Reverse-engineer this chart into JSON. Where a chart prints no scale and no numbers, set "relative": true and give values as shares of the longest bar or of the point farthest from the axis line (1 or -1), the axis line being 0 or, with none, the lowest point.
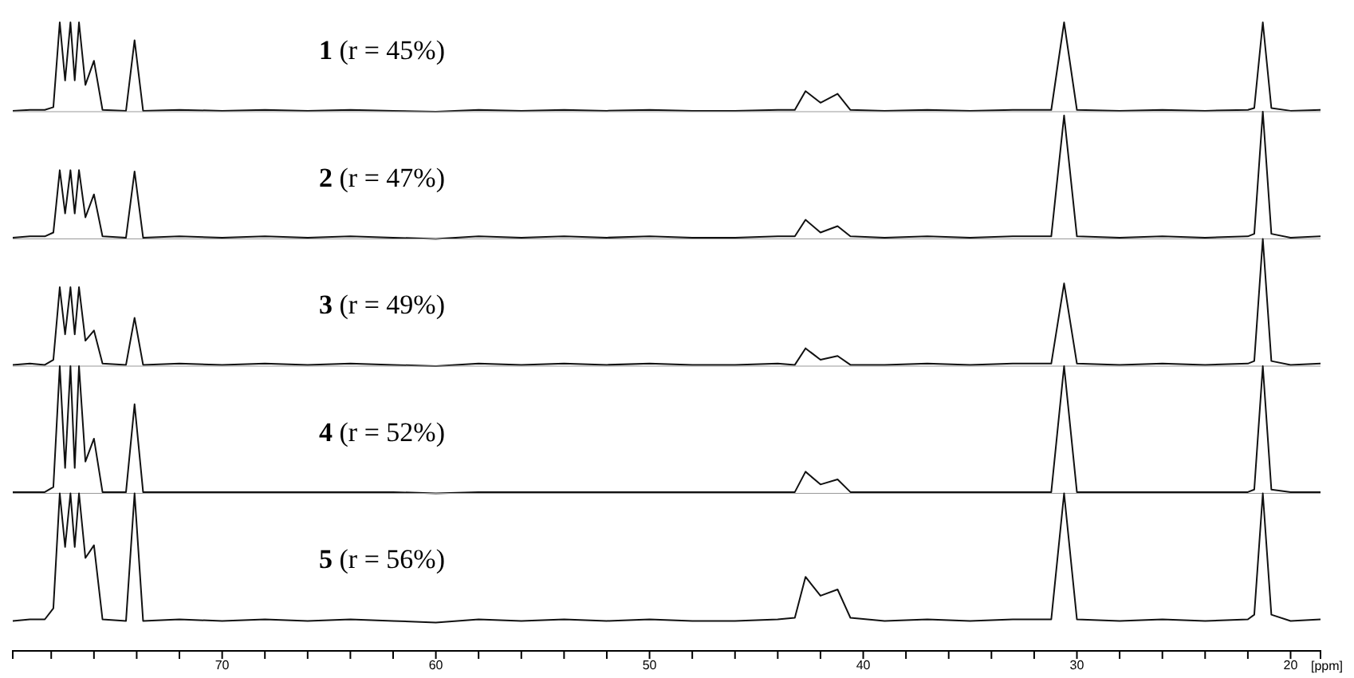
{
  "chart_data": [
    {
      "type": "line",
      "title": "1 (r = 45%)",
      "relative": true,
      "xlim": [
        79.8,
        18.6
      ],
      "tick_labels": false,
      "x": [
        79.8,
        79,
        78.3,
        77.9,
        77.6,
        77.35,
        77.1,
        76.9,
        76.7,
        76.4,
        76.0,
        75.6,
        74.5,
        74.1,
        73.7,
        72,
        70,
        68,
        66,
        64,
        62,
        60,
        58,
        56,
        54,
        52,
        50,
        48,
        46,
        44,
        43.2,
        42.7,
        42.0,
        41.2,
        40.6,
        39,
        37,
        35,
        33,
        31.2,
        30.6,
        30.0,
        28,
        26,
        24,
        22,
        21.7,
        21.3,
        20.9,
        20,
        18.6
      ],
      "series": [
        {
          "color": "#111111",
          "values": [
            0.01,
            0.02,
            0.02,
            0.05,
            1,
            0.35,
            1,
            0.35,
            1,
            0.3,
            0.57,
            0.02,
            0.01,
            0.8,
            0.01,
            0.02,
            0.01,
            0.02,
            0.01,
            0.02,
            0.01,
            0,
            0.02,
            0.01,
            0.02,
            0.01,
            0.02,
            0.01,
            0.01,
            0.02,
            0.02,
            0.23,
            0.1,
            0.2,
            0.02,
            0.01,
            0.02,
            0.01,
            0.02,
            0.02,
            1,
            0.02,
            0.01,
            0.02,
            0.01,
            0.02,
            0.04,
            1,
            0.04,
            0.01,
            0.02
          ]
        }
      ]
    },
    {
      "type": "line",
      "title": "2 (r = 47%)",
      "relative": true,
      "xlim": [
        79.8,
        18.6
      ],
      "tick_labels": false,
      "x": [
        79.8,
        79,
        78.3,
        77.9,
        77.6,
        77.35,
        77.1,
        76.9,
        76.7,
        76.4,
        76.0,
        75.6,
        74.5,
        74.1,
        73.7,
        72,
        70,
        68,
        66,
        64,
        62,
        60,
        58,
        56,
        54,
        52,
        50,
        48,
        46,
        44,
        43.2,
        42.7,
        42.0,
        41.2,
        40.6,
        39,
        37,
        35,
        33,
        31.2,
        30.6,
        30.0,
        28,
        26,
        24,
        22,
        21.7,
        21.3,
        20.9,
        20,
        18.6
      ],
      "series": [
        {
          "color": "#111111",
          "values": [
            0.01,
            0.02,
            0.02,
            0.05,
            0.54,
            0.2,
            0.54,
            0.2,
            0.54,
            0.17,
            0.35,
            0.02,
            0.01,
            0.53,
            0.01,
            0.02,
            0.01,
            0.02,
            0.01,
            0.02,
            0.01,
            0,
            0.02,
            0.01,
            0.02,
            0.01,
            0.02,
            0.01,
            0.01,
            0.02,
            0.02,
            0.15,
            0.05,
            0.1,
            0.02,
            0.01,
            0.02,
            0.01,
            0.02,
            0.02,
            0.97,
            0.02,
            0.01,
            0.02,
            0.01,
            0.02,
            0.04,
            1,
            0.04,
            0.01,
            0.02
          ]
        }
      ]
    },
    {
      "type": "line",
      "title": "3 (r = 49%)",
      "relative": true,
      "xlim": [
        79.8,
        18.6
      ],
      "tick_labels": false,
      "x": [
        79.8,
        79,
        78.3,
        77.9,
        77.6,
        77.35,
        77.1,
        76.9,
        76.7,
        76.4,
        76.0,
        75.6,
        74.5,
        74.1,
        73.7,
        72,
        70,
        68,
        66,
        64,
        62,
        60,
        58,
        56,
        54,
        52,
        50,
        48,
        46,
        44,
        43.2,
        42.7,
        42.0,
        41.2,
        40.6,
        39,
        37,
        35,
        33,
        31.2,
        30.6,
        30.0,
        28,
        26,
        24,
        22,
        21.7,
        21.3,
        20.9,
        20,
        18.6
      ],
      "series": [
        {
          "color": "#111111",
          "values": [
            0.01,
            0.02,
            0.01,
            0.05,
            0.62,
            0.25,
            0.62,
            0.25,
            0.62,
            0.2,
            0.28,
            0.02,
            0.01,
            0.38,
            0.01,
            0.02,
            0.01,
            0.02,
            0.01,
            0.02,
            0.01,
            0,
            0.02,
            0.01,
            0.02,
            0.01,
            0.02,
            0.01,
            0.01,
            0.02,
            0.01,
            0.14,
            0.05,
            0.08,
            0.01,
            0.01,
            0.02,
            0.01,
            0.02,
            0.02,
            0.65,
            0.02,
            0.01,
            0.02,
            0.01,
            0.02,
            0.04,
            1,
            0.04,
            0.01,
            0.02
          ]
        }
      ]
    },
    {
      "type": "line",
      "title": "4 (r = 52%)",
      "relative": true,
      "xlim": [
        79.8,
        18.6
      ],
      "tick_labels": false,
      "x": [
        79.8,
        79,
        78.3,
        77.9,
        77.6,
        77.35,
        77.1,
        76.9,
        76.7,
        76.4,
        76.0,
        75.6,
        74.5,
        74.1,
        73.7,
        72,
        70,
        68,
        66,
        64,
        62,
        60,
        58,
        56,
        54,
        52,
        50,
        48,
        46,
        44,
        43.2,
        42.7,
        42.0,
        41.2,
        40.6,
        39,
        37,
        35,
        33,
        31.2,
        30.6,
        30.0,
        28,
        26,
        24,
        22,
        21.7,
        21.3,
        20.9,
        20,
        18.6
      ],
      "series": [
        {
          "color": "#111111",
          "values": [
            0.01,
            0.01,
            0.01,
            0.05,
            1,
            0.2,
            1,
            0.2,
            1,
            0.25,
            0.43,
            0.01,
            0.01,
            0.7,
            0.01,
            0.01,
            0.01,
            0.01,
            0.01,
            0.01,
            0.01,
            0,
            0.01,
            0.01,
            0.01,
            0.01,
            0.01,
            0.01,
            0.01,
            0.01,
            0.01,
            0.17,
            0.07,
            0.11,
            0.01,
            0.01,
            0.01,
            0.01,
            0.01,
            0.01,
            1,
            0.01,
            0.01,
            0.01,
            0.01,
            0.01,
            0.03,
            1,
            0.03,
            0.01,
            0.01
          ]
        }
      ]
    },
    {
      "type": "line",
      "title": "5 (r = 56%)",
      "relative": true,
      "xlim": [
        79.8,
        18.6
      ],
      "xlabel": "[ppm]",
      "xticks": [
        {
          "value": 78,
          "label": null
        },
        {
          "value": 76,
          "label": null
        },
        {
          "value": 74,
          "label": null
        },
        {
          "value": 72,
          "label": null
        },
        70,
        {
          "value": 68,
          "label": null
        },
        {
          "value": 66,
          "label": null
        },
        {
          "value": 64,
          "label": null
        },
        {
          "value": 62,
          "label": null
        },
        60,
        {
          "value": 58,
          "label": null
        },
        {
          "value": 56,
          "label": null
        },
        {
          "value": 54,
          "label": null
        },
        {
          "value": 52,
          "label": null
        },
        50,
        {
          "value": 48,
          "label": null
        },
        {
          "value": 46,
          "label": null
        },
        {
          "value": 44,
          "label": null
        },
        {
          "value": 42,
          "label": null
        },
        40,
        {
          "value": 38,
          "label": null
        },
        {
          "value": 36,
          "label": null
        },
        {
          "value": 34,
          "label": null
        },
        {
          "value": 32,
          "label": null
        },
        30,
        {
          "value": 28,
          "label": null
        },
        {
          "value": 26,
          "label": null
        },
        {
          "value": 24,
          "label": null
        },
        {
          "value": 22,
          "label": null
        },
        20
      ],
      "x": [
        79.8,
        79,
        78.3,
        77.9,
        77.6,
        77.35,
        77.1,
        76.9,
        76.7,
        76.4,
        76.0,
        75.6,
        74.5,
        74.1,
        73.7,
        72,
        70,
        68,
        66,
        64,
        62,
        60,
        58,
        56,
        54,
        52,
        50,
        48,
        46,
        44,
        43.2,
        42.7,
        42.0,
        41.2,
        40.6,
        39,
        37,
        35,
        33,
        31.2,
        30.6,
        30.0,
        28,
        26,
        24,
        22,
        21.7,
        21.3,
        20.9,
        20,
        18.6
      ],
      "series": [
        {
          "color": "#111111",
          "values": [
            0.19,
            0.2,
            0.2,
            0.27,
            1,
            0.66,
            1,
            0.66,
            1,
            0.59,
            0.67,
            0.2,
            0.19,
            1,
            0.19,
            0.2,
            0.19,
            0.2,
            0.19,
            0.2,
            0.19,
            0.18,
            0.2,
            0.19,
            0.2,
            0.19,
            0.2,
            0.19,
            0.19,
            0.2,
            0.21,
            0.47,
            0.35,
            0.39,
            0.21,
            0.19,
            0.2,
            0.19,
            0.2,
            0.2,
            1,
            0.2,
            0.19,
            0.2,
            0.19,
            0.2,
            0.23,
            1,
            0.23,
            0.19,
            0.2
          ]
        }
      ]
    }
  ]
}
